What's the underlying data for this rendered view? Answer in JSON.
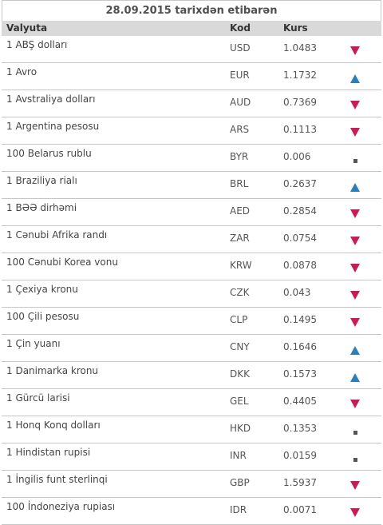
{
  "table": {
    "title": "28.09.2015 tarixdən etibarən",
    "headers": {
      "currency": "Valyuta",
      "code": "Kod",
      "rate": "Kurs"
    },
    "rows": [
      {
        "name": "1 ABŞ dolları",
        "code": "USD",
        "rate": "1.0483",
        "trend": "down"
      },
      {
        "name": "1 Avro",
        "code": "EUR",
        "rate": "1.1732",
        "trend": "up"
      },
      {
        "name": "1 Avstraliya dolları",
        "code": "AUD",
        "rate": "0.7369",
        "trend": "down"
      },
      {
        "name": "1 Argentina pesosu",
        "code": "ARS",
        "rate": "0.1113",
        "trend": "down"
      },
      {
        "name": "100 Belarus rublu",
        "code": "BYR",
        "rate": "0.006",
        "trend": "same"
      },
      {
        "name": "1 Braziliya rialı",
        "code": "BRL",
        "rate": "0.2637",
        "trend": "up"
      },
      {
        "name": "1 BƏƏ dirhəmi",
        "code": "AED",
        "rate": "0.2854",
        "trend": "down"
      },
      {
        "name": "1 Cənubi Afrika randı",
        "code": "ZAR",
        "rate": "0.0754",
        "trend": "down"
      },
      {
        "name": "100 Cənubi Korea vonu",
        "code": "KRW",
        "rate": "0.0878",
        "trend": "down"
      },
      {
        "name": "1 Çexiya kronu",
        "code": "CZK",
        "rate": "0.043",
        "trend": "down"
      },
      {
        "name": "100 Çili pesosu",
        "code": "CLP",
        "rate": "0.1495",
        "trend": "down"
      },
      {
        "name": "1 Çin yuanı",
        "code": "CNY",
        "rate": "0.1646",
        "trend": "up"
      },
      {
        "name": "1 Danimarka kronu",
        "code": "DKK",
        "rate": "0.1573",
        "trend": "up"
      },
      {
        "name": "1 Gürcü larisi",
        "code": "GEL",
        "rate": "0.4405",
        "trend": "down"
      },
      {
        "name": "1 Honq Konq dolları",
        "code": "HKD",
        "rate": "0.1353",
        "trend": "same"
      },
      {
        "name": "1 Hindistan rupisi",
        "code": "INR",
        "rate": "0.0159",
        "trend": "same"
      },
      {
        "name": "1 İngilis funt sterlinqi",
        "code": "GBP",
        "rate": "1.5937",
        "trend": "down"
      },
      {
        "name": "100 İndoneziya rupiası",
        "code": "IDR",
        "rate": "0.0071",
        "trend": "down"
      }
    ]
  },
  "colors": {
    "down": "#c41e5a",
    "up": "#2c7fb8",
    "same": "#555555",
    "header_bg": "#d9d9d9"
  },
  "icons": {
    "down": "triangle-down-icon",
    "up": "triangle-up-icon",
    "same": "square-icon"
  }
}
